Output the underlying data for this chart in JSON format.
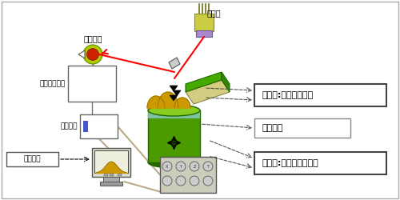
{
  "bg_color": "#f2f2f2",
  "labels": {
    "hikentshutsuki": "光検出器",
    "shingo": "信号処理回路",
    "seigyo": "制御回路",
    "sokutei": "測定画像",
    "reza": "レーザ",
    "cantilever": "新開発:カンチレバー",
    "sample": "サンプル",
    "scanner": "新開発:高速スキャナー"
  },
  "cylinder_green_dark": "#3a7a00",
  "cylinder_green": "#4a9a00",
  "cylinder_top": "#88cc22",
  "cylinder_cyan": "#88cccc",
  "cant_beige": "#d4cc80",
  "cant_green": "#44aa00",
  "laser_green": "#99bb44",
  "laser_purple": "#aa88cc",
  "laser_yellow": "#cccc44",
  "det_yellow": "#aacc00",
  "det_red": "#cc2200",
  "sample_gold": "#cc9900",
  "wire_color": "#bbaa88",
  "ctrl2_bg": "#ccccbb"
}
